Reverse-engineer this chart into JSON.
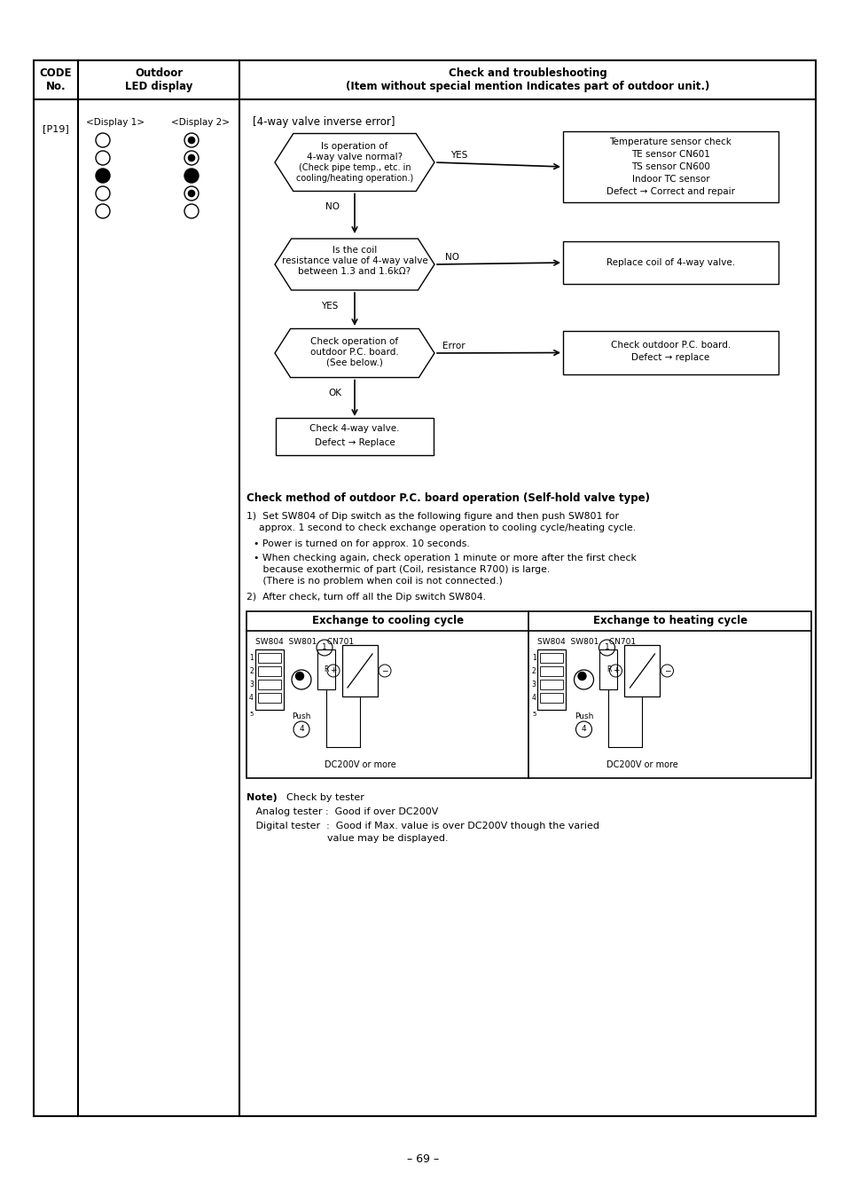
{
  "page_bg": "#ffffff",
  "border_color": "#000000",
  "title_text": "Check and troubleshooting\n(Item without special mention Indicates part of outdoor unit.)",
  "col1_header": "CODE\nNo.",
  "col2_header": "Outdoor\nLED display",
  "code": "[P19]",
  "display1_label": "<Display 1>",
  "display2_label": "<Display 2>",
  "error_title": "[4-way valve inverse error]",
  "check_method_title": "Check method of outdoor P.C. board operation (Self-hold valve type)",
  "step1_line1": "1)  Set SW804 of Dip switch as the following figure and then push SW801 for",
  "step1_line2": "    approx. 1 second to check exchange operation to cooling cycle/heating cycle.",
  "bullet1": "• Power is turned on for approx. 10 seconds.",
  "bullet2a": "• When checking again, check operation 1 minute or more after the first check",
  "bullet2b": "   because exothermic of part (Coil, resistance R700) is large.",
  "bullet2c": "   (There is no problem when coil is not connected.)",
  "step2_text": "2)  After check, turn off all the Dip switch SW804.",
  "cooling_header": "Exchange to cooling cycle",
  "heating_header": "Exchange to heating cycle",
  "note_bold": "Note)",
  "note_rest": "  Check by tester",
  "analog_text": "   Analog tester :  Good if over DC200V",
  "digital_text1": "   Digital tester  :  Good if Max. value is over DC200V though the varied",
  "digital_text2": "                          value may be displayed.",
  "page_num": "– 69 –"
}
